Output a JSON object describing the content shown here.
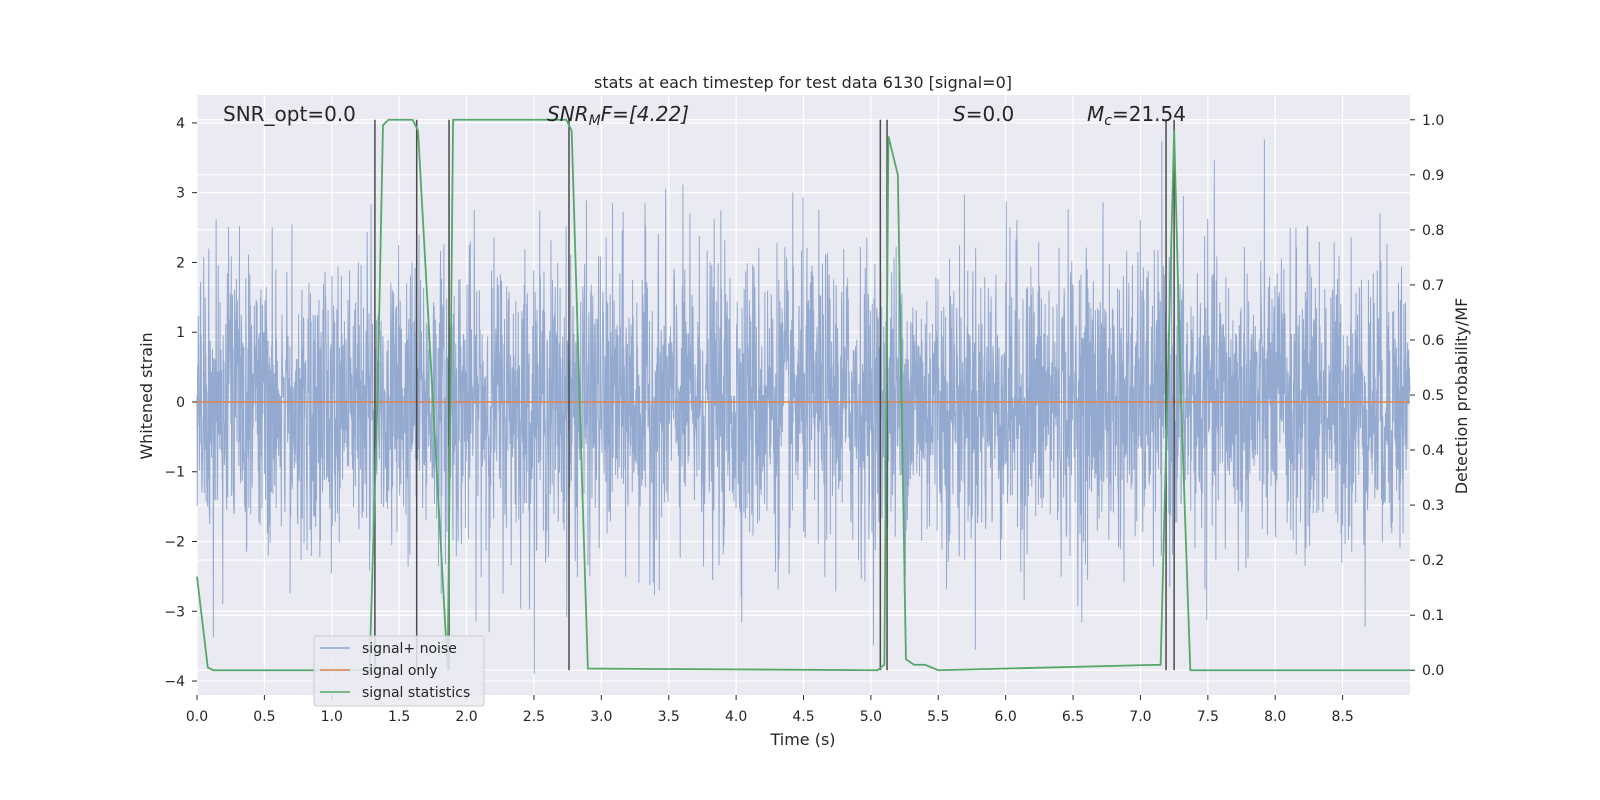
{
  "chart_data": {
    "type": "line",
    "title": "stats at each timestep for test data 6130 [signal=0]",
    "xlabel": "Time (s)",
    "ylabel": "Whitened strain",
    "ylabel_right": "Detection probability/MF",
    "xlim": [
      0,
      9
    ],
    "ylim": [
      -4.2,
      4.4
    ],
    "ylim_right": [
      -0.045,
      1.045
    ],
    "x_ticks": [
      "0.0",
      "0.5",
      "1.0",
      "1.5",
      "2.0",
      "2.5",
      "3.0",
      "3.5",
      "4.0",
      "4.5",
      "5.0",
      "5.5",
      "6.0",
      "6.5",
      "7.0",
      "7.5",
      "8.0",
      "8.5"
    ],
    "x_tick_values": [
      0,
      0.5,
      1,
      1.5,
      2,
      2.5,
      3,
      3.5,
      4,
      4.5,
      5,
      5.5,
      6,
      6.5,
      7,
      7.5,
      8,
      8.5
    ],
    "y_ticks": [
      "4",
      "3",
      "2",
      "1",
      "0",
      "−1",
      "−2",
      "−3",
      "−4"
    ],
    "y_tick_values": [
      4,
      3,
      2,
      1,
      0,
      -1,
      -2,
      -3,
      -4
    ],
    "y_ticks_right": [
      "1.0",
      "0.9",
      "0.8",
      "0.7",
      "0.6",
      "0.5",
      "0.4",
      "0.3",
      "0.2",
      "0.1",
      "0.0"
    ],
    "y_tick_values_right": [
      1.0,
      0.9,
      0.8,
      0.7,
      0.6,
      0.5,
      0.4,
      0.3,
      0.2,
      0.1,
      0.0
    ],
    "grid": true,
    "legend_placement": "lower-left",
    "annotations": {
      "snr_opt": "SNR_opt=0.0",
      "snr_mf_main": "SNR",
      "snr_mf_sub": "M",
      "snr_mf_rest": "F=[4.22]",
      "s_main": "S",
      "s_rest": "=0.0",
      "mc_main": "M",
      "mc_sub": "c",
      "mc_rest": "=21.54"
    },
    "series": [
      {
        "name": "signal+ noise",
        "color": "#8fa5cc",
        "axis": "left",
        "description_values": {
          "typical_range": [
            -1.4,
            1.4
          ],
          "max": 3.9,
          "min": -3.9
        }
      },
      {
        "name": "signal only",
        "color": "#dd8452",
        "axis": "left",
        "x": [
          0,
          9
        ],
        "y": [
          0,
          0
        ]
      },
      {
        "name": "signal statistics",
        "color": "#55a868",
        "axis": "right",
        "x": [
          0,
          0.08,
          0.12,
          1.28,
          1.34,
          1.38,
          1.42,
          1.6,
          1.64,
          1.86,
          1.9,
          1.94,
          2.74,
          2.78,
          2.85,
          2.9,
          5.05,
          5.1,
          5.13,
          5.2,
          5.26,
          5.32,
          5.4,
          5.5,
          7.15,
          7.2,
          7.25,
          7.3,
          7.37,
          9.0
        ],
        "y": [
          0.17,
          0.005,
          0.0,
          0.0,
          0.5,
          0.99,
          1.0,
          1.0,
          0.98,
          0.0,
          1.0,
          1.0,
          1.0,
          0.98,
          0.4,
          0.003,
          0.0,
          0.01,
          0.97,
          0.9,
          0.02,
          0.01,
          0.01,
          0.0,
          0.01,
          0.5,
          0.98,
          0.5,
          0.0,
          0.0
        ]
      }
    ],
    "vertical_markers": [
      1.32,
      1.63,
      1.87,
      2.76,
      5.07,
      5.12,
      7.19,
      7.25
    ]
  },
  "colors": {
    "plot_background": "#eaeaf2",
    "grid": "#ffffff",
    "marker_line": "#4c4c4c",
    "legend_border": "#cccccc"
  }
}
